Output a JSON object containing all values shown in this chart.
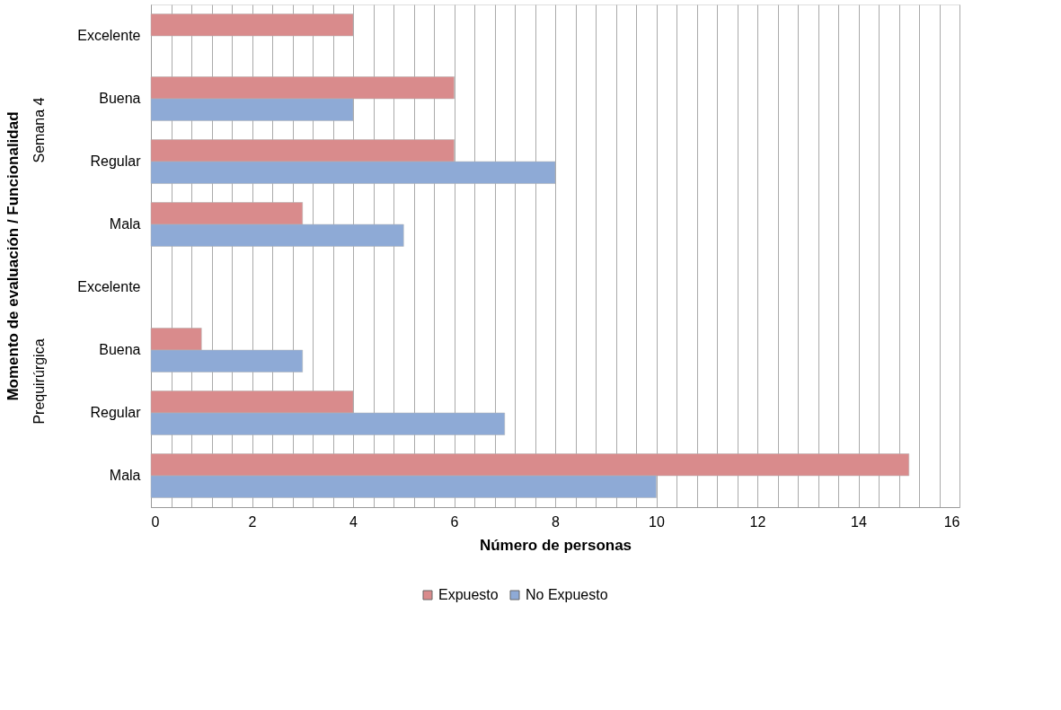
{
  "chart_data": {
    "type": "bar",
    "orientation": "horizontal",
    "categories": [
      "Excelente",
      "Buena",
      "Regular",
      "Mala",
      "Excelente",
      "Buena",
      "Regular",
      "Mala"
    ],
    "series": [
      {
        "name": "Expuesto",
        "color": "#d98b8c",
        "values": [
          4,
          6,
          6,
          3,
          null,
          1,
          4,
          15
        ]
      },
      {
        "name": "No Expuesto",
        "color": "#8eaad6",
        "values": [
          null,
          4,
          8,
          5,
          null,
          3,
          7,
          10
        ]
      }
    ],
    "xlabel": "Número de personas",
    "ylabel": "Momento de evaluación / Funcionalidad",
    "annotations": [
      "Semana 4",
      "Prequirúrgica"
    ],
    "xlim": [
      0,
      16
    ],
    "xticks": [
      0,
      {
        "value": 0.4,
        "label": null
      },
      {
        "value": 0.8,
        "label": null
      },
      {
        "value": 1.2,
        "label": null
      },
      {
        "value": 1.6,
        "label": null
      },
      2,
      {
        "value": 2.4,
        "label": null
      },
      {
        "value": 2.8,
        "label": null
      },
      {
        "value": 3.2,
        "label": null
      },
      {
        "value": 3.6,
        "label": null
      },
      4,
      {
        "value": 4.4,
        "label": null
      },
      {
        "value": 4.8,
        "label": null
      },
      {
        "value": 5.2,
        "label": null
      },
      {
        "value": 5.6,
        "label": null
      },
      6,
      {
        "value": 6.4,
        "label": null
      },
      {
        "value": 6.8,
        "label": null
      },
      {
        "value": 7.2,
        "label": null
      },
      {
        "value": 7.6,
        "label": null
      },
      8,
      {
        "value": 8.4,
        "label": null
      },
      {
        "value": 8.8,
        "label": null
      },
      {
        "value": 9.2,
        "label": null
      },
      {
        "value": 9.6,
        "label": null
      },
      10,
      {
        "value": 10.4,
        "label": null
      },
      {
        "value": 10.8,
        "label": null
      },
      {
        "value": 11.2,
        "label": null
      },
      {
        "value": 11.6,
        "label": null
      },
      12,
      {
        "value": 12.4,
        "label": null
      },
      {
        "value": 12.8,
        "label": null
      },
      {
        "value": 13.2,
        "label": null
      },
      {
        "value": 13.6,
        "label": null
      },
      14,
      {
        "value": 14.4,
        "label": null
      },
      {
        "value": 14.8,
        "label": null
      },
      {
        "value": 15.2,
        "label": null
      },
      {
        "value": 15.6,
        "label": null
      },
      16
    ],
    "grid": "x",
    "legend": "bottom"
  }
}
